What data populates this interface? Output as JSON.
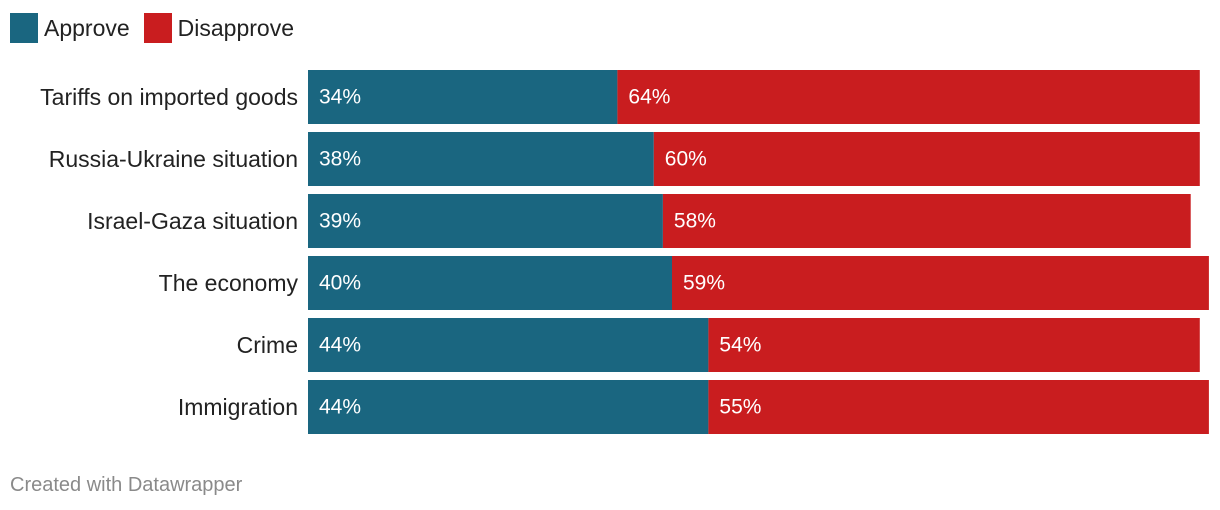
{
  "chart_data": {
    "type": "bar",
    "orientation": "horizontal",
    "stacked": true,
    "categories": [
      "Tariffs on imported goods",
      "Russia-Ukraine situation",
      "Israel-Gaza situation",
      "The economy",
      "Crime",
      "Immigration"
    ],
    "series": [
      {
        "name": "Approve",
        "color": "#1a6680",
        "values": [
          34,
          38,
          39,
          40,
          44,
          44
        ],
        "labels": [
          "34%",
          "38%",
          "39%",
          "40%",
          "44%",
          "44%"
        ]
      },
      {
        "name": "Disapprove",
        "color": "#c91d1f",
        "values": [
          64,
          60,
          58,
          59,
          54,
          55
        ],
        "labels": [
          "64%",
          "60%",
          "58%",
          "59%",
          "54%",
          "55%"
        ]
      }
    ],
    "xlim": [
      0,
      100
    ],
    "title": "",
    "xlabel": "",
    "ylabel": "",
    "legend_position": "top-left",
    "grid": false
  },
  "footer": {
    "credit": "Created with Datawrapper"
  }
}
